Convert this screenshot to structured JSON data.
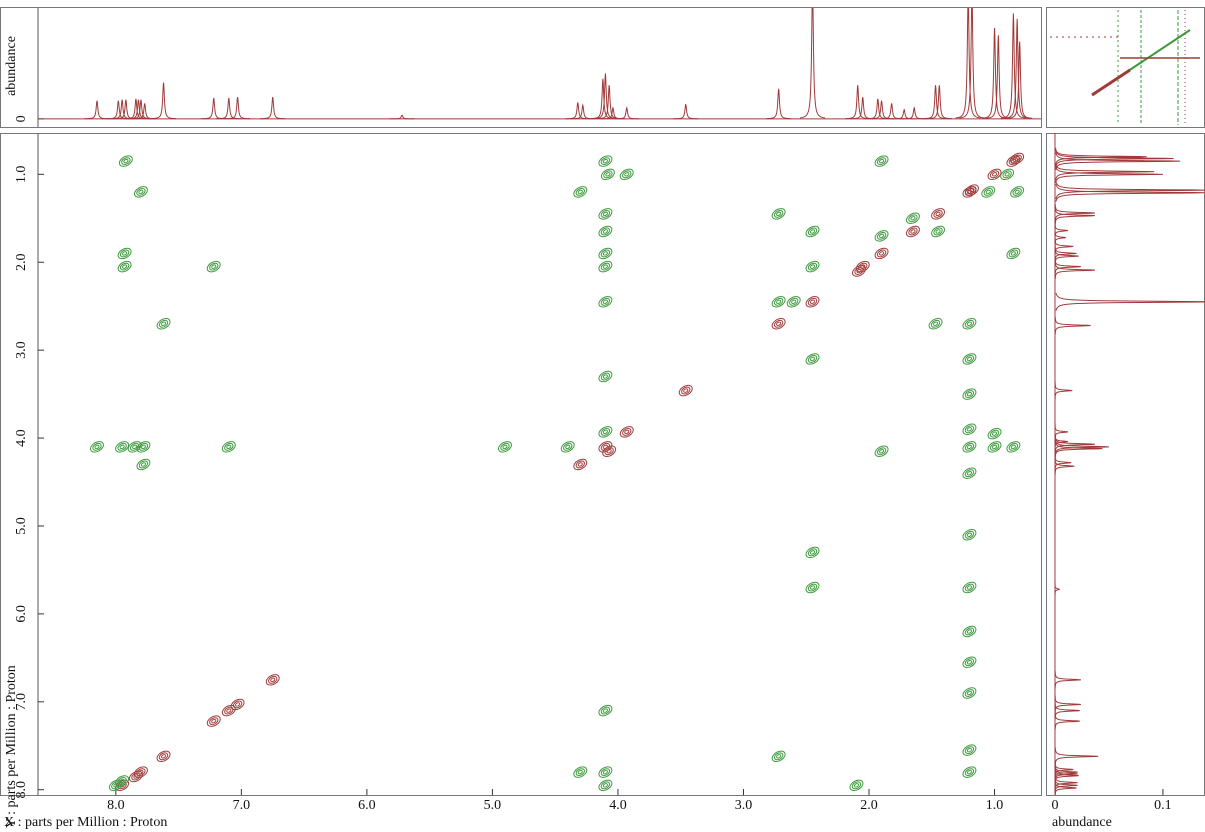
{
  "chart_data": [
    {
      "type": "contour",
      "xlabel": "X : parts per Million : Proton",
      "ylabel": "Y : parts per Million : Proton",
      "xlim": [
        8.62,
        0.63
      ],
      "ylim": [
        0.53,
        8.06
      ],
      "xticks": [
        {
          "value": 8,
          "label": "8.0"
        },
        {
          "value": 7,
          "label": "7.0"
        },
        {
          "value": 6,
          "label": "6.0"
        },
        {
          "value": 5,
          "label": "5.0"
        },
        {
          "value": 4,
          "label": "4.0"
        },
        {
          "value": 3,
          "label": "3.0"
        },
        {
          "value": 2,
          "label": "2.0"
        },
        {
          "value": 1,
          "label": "1.0"
        }
      ],
      "yticks": [
        {
          "value": 1,
          "label": "1.0"
        },
        {
          "value": 2,
          "label": "2.0"
        },
        {
          "value": 3,
          "label": "3.0"
        },
        {
          "value": 4,
          "label": "4.0"
        },
        {
          "value": 5,
          "label": "5.0"
        },
        {
          "value": 6,
          "label": "6.0"
        },
        {
          "value": 7,
          "label": "7.0"
        },
        {
          "value": 8,
          "label": "8.0"
        }
      ],
      "series": [
        {
          "color": "#a03a3a",
          "x": [
            0.82,
            0.85,
            1.0,
            1.2,
            1.18,
            1.45,
            1.65,
            1.9,
            2.05,
            2.08,
            2.45,
            2.72,
            3.46,
            3.93,
            4.1,
            4.07,
            4.3,
            6.75,
            7.03,
            7.1,
            7.22,
            7.62,
            7.8,
            7.84,
            7.95,
            8.15
          ],
          "values": [
            0.82,
            0.85,
            1.0,
            1.2,
            1.18,
            1.45,
            1.65,
            1.9,
            2.05,
            2.1,
            2.45,
            2.7,
            3.46,
            3.93,
            4.1,
            4.15,
            4.3,
            6.75,
            7.03,
            7.1,
            7.22,
            7.62,
            7.8,
            7.85,
            7.95,
            8.15
          ]
        },
        {
          "color": "#3c9a3c",
          "x": [
            7.92,
            7.8,
            7.93,
            7.93,
            7.62,
            7.22,
            8.15,
            7.95,
            7.85,
            7.78,
            7.78,
            7.1,
            4.1,
            4.3,
            4.08,
            3.93,
            4.1,
            4.1,
            4.1,
            4.1,
            4.1,
            4.1,
            4.1,
            4.9,
            4.4,
            1.9,
            2.72,
            2.45,
            2.45,
            1.9,
            1.65,
            1.45,
            1.05,
            0.9,
            0.82,
            1.47,
            1.2,
            2.72,
            2.6,
            1.2,
            1.2,
            1.2,
            1.2,
            1.0,
            0.85,
            1.0,
            1.9,
            1.2,
            1.2,
            1.2,
            1.2,
            1.2,
            1.2,
            1.2,
            1.2,
            1.2,
            2.45,
            2.45,
            2.45,
            4.1,
            4.1,
            4.1,
            4.1,
            4.3,
            7.95,
            8.0,
            2.72,
            2.1,
            0.8,
            0.85
          ],
          "values": [
            0.85,
            1.2,
            1.9,
            2.05,
            2.7,
            2.05,
            4.1,
            4.1,
            4.1,
            4.1,
            4.3,
            4.1,
            0.85,
            1.2,
            1.0,
            1.0,
            1.45,
            1.65,
            1.9,
            2.05,
            2.45,
            3.3,
            3.93,
            4.1,
            4.1,
            0.85,
            1.45,
            1.65,
            2.05,
            1.7,
            1.5,
            1.65,
            1.2,
            1.0,
            1.2,
            2.7,
            2.7,
            2.45,
            2.45,
            3.1,
            3.5,
            3.9,
            4.1,
            3.95,
            4.1,
            4.1,
            4.15,
            4.4,
            5.1,
            5.7,
            6.2,
            6.55,
            6.9,
            7.55,
            7.8,
            8.15,
            5.7,
            5.3,
            3.1,
            7.1,
            7.8,
            7.95,
            8.15,
            7.8,
            7.9,
            7.95,
            7.62,
            7.95,
            8.15,
            1.9
          ]
        }
      ]
    },
    {
      "type": "spectrum",
      "ylabel": "abundance",
      "xlim": [
        8.62,
        0.63
      ],
      "ylim": [
        -0.009,
        0.122
      ],
      "yticks": [
        0
      ],
      "color": "#a03a3a",
      "x": [
        8.15,
        7.98,
        7.95,
        7.92,
        7.84,
        7.82,
        7.8,
        7.77,
        7.62,
        7.22,
        7.1,
        7.03,
        6.75,
        5.72,
        4.32,
        4.28,
        4.12,
        4.1,
        4.07,
        4.04,
        3.93,
        3.46,
        2.72,
        2.45,
        2.09,
        2.05,
        1.93,
        1.9,
        1.82,
        1.72,
        1.64,
        1.47,
        1.44,
        1.21,
        1.18,
        1.0,
        0.97,
        0.85,
        0.82,
        0.8
      ],
      "values": [
        0.02,
        0.02,
        0.021,
        0.021,
        0.022,
        0.021,
        0.021,
        0.017,
        0.04,
        0.023,
        0.023,
        0.024,
        0.024,
        0.004,
        0.018,
        0.015,
        0.044,
        0.05,
        0.037,
        0.012,
        0.012,
        0.016,
        0.033,
        0.15,
        0.037,
        0.024,
        0.022,
        0.02,
        0.017,
        0.01,
        0.012,
        0.037,
        0.037,
        0.14,
        0.14,
        0.1,
        0.092,
        0.116,
        0.11,
        0.085
      ]
    },
    {
      "type": "spectrum-vertical",
      "xlabel": "abundance",
      "xlim": [
        -0.0074,
        0.139
      ],
      "xticks": [
        0,
        0.1
      ]
    }
  ]
}
